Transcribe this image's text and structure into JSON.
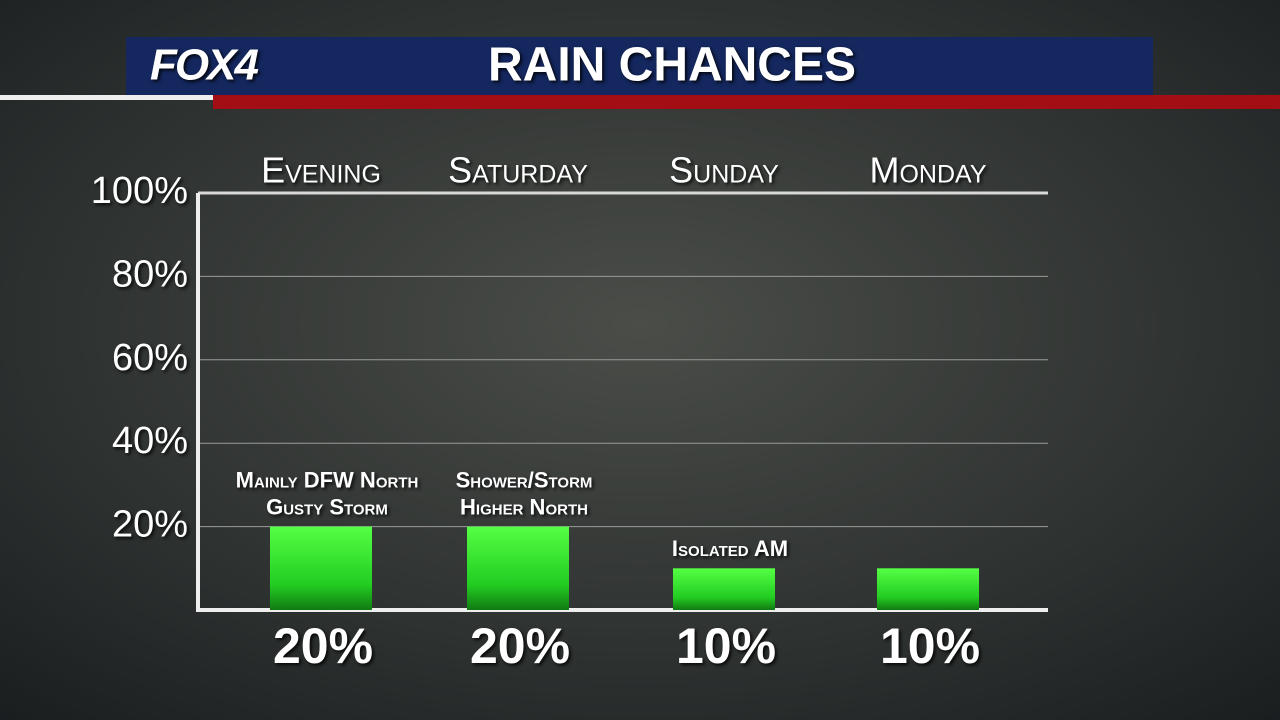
{
  "logo": "FOX4",
  "chart_data": {
    "type": "bar",
    "title": "RAIN CHANCES",
    "categories": [
      "Evening",
      "Saturday",
      "Sunday",
      "Monday"
    ],
    "values": [
      20,
      20,
      10,
      10
    ],
    "value_labels": [
      "20%",
      "20%",
      "10%",
      "10%"
    ],
    "annotations": [
      [
        "Mainly DFW North",
        "Gusty Storm"
      ],
      [
        "Shower/Storm",
        "Higher North"
      ],
      [
        "Isolated AM"
      ],
      null
    ],
    "color": "#33ee33",
    "ylim": [
      0,
      100
    ],
    "yticks": [
      {
        "value": 0,
        "label": null
      },
      {
        "value": 20,
        "label": "20%"
      },
      {
        "value": 40,
        "label": "40%"
      },
      {
        "value": 60,
        "label": "60%"
      },
      {
        "value": 80,
        "label": "80%"
      },
      {
        "value": 100,
        "label": "100%"
      }
    ],
    "grid": true
  }
}
